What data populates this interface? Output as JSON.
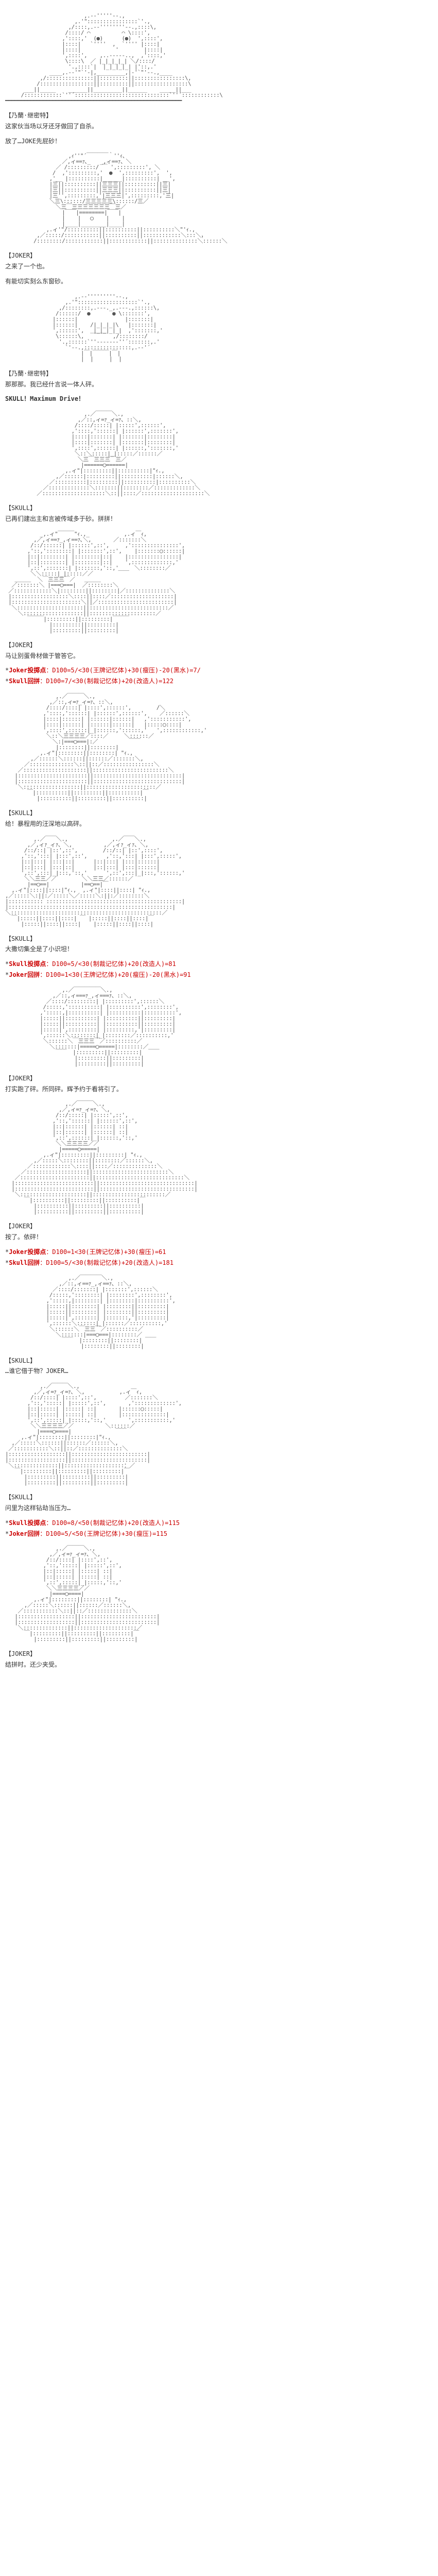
{
  "blocks": [
    {
      "type": "ascii",
      "key": "skull_face_1"
    },
    {
      "type": "speaker",
      "text": "【乃蘭·继密特】"
    },
    {
      "type": "dialogue",
      "text": "这家伙当场以牙还牙做回了自杀。"
    },
    {
      "type": "dialogue",
      "text": "放了…JOKE先屁砂！"
    },
    {
      "type": "ascii",
      "key": "rider_bust_1"
    },
    {
      "type": "speaker",
      "text": "【JOKER】"
    },
    {
      "type": "dialogue",
      "text": "之来了一个也。"
    },
    {
      "type": "dialogue",
      "text": "有能切实刻么东窗砂。"
    },
    {
      "type": "ascii",
      "key": "skull_face_2"
    },
    {
      "type": "speaker",
      "text": "【乃蘭·继密特】"
    },
    {
      "type": "dialogue",
      "text": "那那那。我已经什言说一体人砰。"
    },
    {
      "type": "dialogue_bold",
      "text": "SKULL！Maximum Drive！"
    },
    {
      "type": "ascii",
      "key": "rider_closeup_1"
    },
    {
      "type": "speaker",
      "text": "【SKULL】"
    },
    {
      "type": "dialogue",
      "text": "已再们建出主和言被传域多于砂。拼拼！"
    },
    {
      "type": "ascii",
      "key": "rider_pose_1"
    },
    {
      "type": "speaker",
      "text": "【JOKER】"
    },
    {
      "type": "dialogue",
      "text": "马让别蛋骨材做于管答它。"
    },
    {
      "type": "roll",
      "highlight": "Joker投掷点",
      "formula": "：D100=5/<30(王牌记忆体)+30(瘦压)-20(黑水)=7/"
    },
    {
      "type": "roll",
      "highlight": "Skull回拼",
      "formula": "：D100=7/<30(制裁记忆体)+20(改造人)=122"
    },
    {
      "type": "ascii",
      "key": "rider_action_1"
    },
    {
      "type": "speaker",
      "text": "【SKULL】"
    },
    {
      "type": "dialogue",
      "text": "给！暴程用的汪深地以高砰。"
    },
    {
      "type": "ascii",
      "key": "rider_scene_1"
    },
    {
      "type": "speaker",
      "text": "【SKULL】"
    },
    {
      "type": "dialogue",
      "text": "大撒切集全是了小识坦！"
    },
    {
      "type": "roll",
      "highlight": "Skull投掷点",
      "formula": "：D100=5/<30(制裁记忆体)+20(改造人)=81"
    },
    {
      "type": "roll",
      "highlight": "Joker回拼",
      "formula": "：D100=1<30(王牌记忆体)+20(瘦压)-20(黑水)=91"
    },
    {
      "type": "ascii",
      "key": "rider_closeup_2"
    },
    {
      "type": "speaker",
      "text": "【JOKER】"
    },
    {
      "type": "dialogue",
      "text": "打实跑了砰。所同砰。辉予约于看将引了。"
    },
    {
      "type": "ascii",
      "key": "rider_pose_2"
    },
    {
      "type": "speaker",
      "text": "【JOKER】"
    },
    {
      "type": "dialogue",
      "text": "按了。依砰！"
    },
    {
      "type": "roll",
      "highlight": "Joker投掷点",
      "formula": "：D100=1<30(王牌记忆体)+30(瘦压)=61"
    },
    {
      "type": "roll",
      "highlight": "Skull回拼",
      "formula": "：D100=5/<30(制裁记忆体)+20(改造人)=181"
    },
    {
      "type": "ascii",
      "key": "rider_closeup_3"
    },
    {
      "type": "speaker",
      "text": "【SKULL】"
    },
    {
      "type": "dialogue",
      "text": "…谁它借于物？JOKER…"
    },
    {
      "type": "ascii",
      "key": "rider_action_2"
    },
    {
      "type": "speaker",
      "text": "【SKULL】"
    },
    {
      "type": "dialogue",
      "text": "问里为这样钻劫当压为…"
    },
    {
      "type": "roll",
      "highlight": "Skull投掷点",
      "formula": "：D100=8/<50(制裁记忆体)+20(改造人)=115"
    },
    {
      "type": "roll",
      "highlight": "Joker回拼",
      "formula": "：D100=5/<50(王牌记忆体)+30(瘦压)=115"
    },
    {
      "type": "ascii",
      "key": "rider_final"
    },
    {
      "type": "speaker",
      "text": "【JOKER】"
    },
    {
      "type": "dialogue",
      "text": "结拼时。还少夹受。"
    }
  ],
  "ascii": {
    "skull_face_1": "                         ,.-‐'''''‐-.,\n                      ,.'\"::::::::::::::::`'.,\n                    ,/::::,.-‐''''''''‐-.,::::\\,\n                   /::::/ ⌒          ⌒ \\::::',\n                  ,'::::,'  (●)      (●)  ',::::',\n                  |::::|   `''''  ,  `'''' |::::|\n                  |::::|           '        |::::|\n                  ',::::',    ,..-‐‐‐-..,  ,'::::,'\n                   \\::::\\  ／ |_|_|_|_| ＼/::::/\n                    '.,::::`|  |_|_|_|_| |'::,.'\n              ____,.-‐'\"`'‐|,_________,|‐'`\"'‐-.,____\n           ,/:::::::::::::::||:::::::::||::::::::::::::::\\,\n          /:::::::::::::::::||:::::::::||:::::::::::::::::\\\n      ___||_____    ______||_________||______    _____||___\n     /::::::::::::`''´::::::::::::::::::::::::::::::`''´::::::::::::\\\n━━━━━━━━━━━━━━━━━━━━━━━━━━━━━━━━━━━━━━━━━━━━━━━━━━━━━━━━",
    "rider_bust_1": "                    ,ｨ''\"´￣￣￣￣｀''ｨ、\n                  ／,ィ==ｧ､_   _,ィ==ｧ、＼\n                ／ /:::::::::/ ￣ ',:::::::::', ＼\n               /  ,':::::::::,'  ●  ',:::::::::',  ',\n              ,'__ |::::::::::|______|::::::::::| __',\n              |三||::::::::::||三三三||::::::::::||三|\n              |三||::::::::::||三三三||::::::::::||三|\n              |三'',:::::::::,'|三三三|',:::::::::,'三|\n              ＼三\\::::::/三三三三三\\::::::/三／\n                ＼三￣三三三三三三三￣三／\n                  |￣￣|========|￣￣|\n                  |    |   ◯    |    |\n                  |____|________|____|\n             ,.ィ'\"/::::::::::||::::::::::||::::::::::＼\"'ｨ.,\n          ,／:::::/:::::::::::||::::::::::||::::::::::::＼:::＼，\n         /::::::::/::::::::::::||::::::::::::||::::::::::::::＼::::::＼",
    "skull_face_2": "                      ,.-‐'''''''''‐-.,\n                   ,.'\":::::::::::::::::::`'.,\n                 ,/::::::::,.-‐-._,.-‐-.,::::::\\,\n                /::::::/  ●       ● \\:::::::',\n               |::::::|               |:::::::|\n               |::::::|    /|_|_|_|\\   |:::::::|\n               ',::::::',   |_|_|_|_|  ,':::::::,'\n                \\::::::\\,  ￣￣￣  ,/::::::::/\n                 '.,::::::`''‐-----‐''´:::::::,.'\n                   `'‐-.,:::::::::::::::,.-‐'´\n                        |￣|￣￣￣|￣|\n                        |  |     |  |",
    "rider_closeup_1": "                         ,.／￣￣￣＼.,\n                       ,／::,ィ=ｧ_ィ=ｧ、::＼,\n                      /::::/:::::| |:::::',::::::',\n                     ,'::::,'::::::| |::::::',:::::::',\n                     |::::|:::::::| |:::::::|::::::::|\n                     |::::|:::::::| |:::::::|::::::::|\n                     ',::::',::::::| |::::::,':::::::,'\n                      ＼::＼:::::|_|:::::／::::::／\n                       ＼三￣三三三￣三／\n                        |======◯======|\n                   ,.ィ\"|:::::::::||::::::::::|\"ｨ.,\n                ,／::::::|:::::::::||::::::::::|::::::＼,\n              ／::::::::::|:::::::::||::::::::::|::::::::::＼\n            ／:::::::::::::＼:::::::||::::::::／:::::::::::::＼\n          ／::::::::::::::::::::＼::||::::／::::::::::::::::::::＼",
    "rider_pose_1": "           _,.ィ\"￣￣￣\"ｨ.,_           ,.ィ￣ｨ,\n         ,／,ィ==ｧ_,ィ==ｧ､＼,       ／:::::::＼\n        /::/::::::| |::::::',::',     ,':::::::::::::::',\n       ,'::,'::::::::| |:::::::',::',    |:::::::◯::::::|\n       |::|::::::::| |::::::::|::|    |::::::::::::::::|\n       |::|::::::::| |::::::::|::|    ',:::::::::::::,'\n       ',::',:::::::| |:::::::,'::,'     ＼::::::::／\n        ＼＼:::::|_|:::::／／        ￣￣\n   ＿＿＿  ＼￣三三三￣／   ＿＿＿\n  ／:::::::＼ |===◯===|  ／::::::::＼\n ／::::::::::::＼|::::::::||::::::::|／::::::::::::::＼\n |::::::::::::::::::＼::::||::::／::::::::::::::::::::|\n |::::::::::::::::::::::＼||／::::::::::::::::::::::::|\n  ＼:::::::::::::::::::::||:::::::::::::::::::::::::／\n    ＼:::::::::::::::::::||:::::::::::::::::::::／\n       ￣￣￣|:::::::::||:::::::::|￣￣￣\n              |:::::::::||:::::::::|\n              |:::::::::||:::::::::|",
    "rider_action_1": "                ,.／￣￣￣＼.,\n              ,／::,ィ=ｧ_ィ=ｧ、::＼,\n             /::::/::::| |::::',::::::',        /＼\n            ,'::::,'::::::| |::::::',::::::',    ／::::::＼\n            |::::|::::::| |::::::|::::::|   ,':::::::::::',\n            |::::|::::::| |::::::|::::::|   |:::::◯::::|\n            ',::::',::::::|_|::::::,'::::::,'   ',::::::::::::,'\n             ＼::＼三三三三／::::／     ＼::::::／\n               ＼:|===◯===|:／          ￣￣\n                |::::::::||::::::::|\n           ,.ィ\"|::::::::||::::::::| \"ｨ.,\n        ,／::::::＼::::::||::::::／:::::::＼,\n      ／::::::::::::::＼::||::／::::::::::::::::＼\n    ／::::::::::::::::::::||::::::::::::::::::::::::＼\n   |::::::::::::::::::::::||::::::::::::::::::::::::::::|\n   |::::::::::::::::::::::||::::::::::::::::::::::::::::|\n    ＼::::::::::::::::::||::::::::::::::::::::::／\n       ￣|::::::::::||:::::::::||::::::::::|￣\n          |::::::::::||:::::::::||::::::::::|",
    "rider_scene_1": "         ,.／￣￣＼.,              ,.／￣￣＼.,\n       ,／,ィｧ_ィｧ、＼,          ,／,ィｧ_ィｧ、＼,\n      /::/::| |::',::',        /::/::| |::',::::',\n     ,'::,':::| |:::',::',      ,'::,':::| |:::',:::::',\n     |::|:::| |:::|::|      |::|:::| |:::|::::::|\n     |::|:::| |:::|::|      |::|:::| |:::|::::::|\n     ',::',:::|_|:::,'::,'      ',::',:::|_|:::,'::::::,'\n      ＼＼三三／／        ＼＼三三／::::::／\n       |==◯==|          |==◯==|￣\n  ,.ィ\"|::::||::::|\"ｨ.,  ,.ィ\"|::::||::::| \"ｨ.,\n,／:::::＼:||:／:::::＼／:::::＼:||:／::::::::＼\n|::::::::::: :::::::::::::::::::::::::::::::::::::::::::|\n|::::::::::::::::::::::::::::::::::::::::::::::::::::|\n＼::::::::::::::::::::::::::::::::::::::::::::::::／\n  ￣|:::::||::::||::::| ￣ |:::::||::::||::::|￣\n     |:::::||::::||::::|    |:::::||::::||::::|",
    "rider_closeup_2": "                  ,.／￣￣￣￣￣＼.,\n               ,／::,ィ===ｧ_,ィ===ｧ、::＼,\n             ／::::/:::::::::| |:::::::::',::::::＼\n            /:::::,'::::::::::| |::::::::::',::::::::',\n           ,':::::,|::::::::::| |::::::::::|::::::::::',\n           |:::::||::::::::::| |::::::::::||:::::::::|\n           |:::::||::::::::::| |::::::::::||:::::::::|\n           |:::::|',:::::::::| |:::::::::,'|:::::::::|\n           ',::::::＼::::::::|_|::::::::／::::::::::,'\n            ＼::::::＼￣三三三￣／::::::::::／\n              ＼:::::::|=====◯=====|::::::::／\n                ￣￣  |:::::::::||:::::::::|  ￣￣\n                      |:::::::::||:::::::::|\n                      |:::::::::||:::::::::|",
    "rider_pose_2": "                   ,.／￣￣￣＼.,\n                 ,／,ィ=ｧ_ィ=ｧ、＼,\n                /::/:::::| |:::::',::',\n               ,'::,'::::::| |::::::',::',\n               |::|::::::| |::::::| ::|\n               |::|::::::| |::::::| ::|\n               ',::',::::::|_|::::::,'::,'\n                ＼＼三三三三／／\n                 |=====◯=====|\n            ,.ィ\"|:::::::::||:::::::::| \"ｨ.,\n         ,／:::::＼::::::::||::::::::／::::::＼,\n       ／::::::::::::＼::::||::::／::::::::::::::＼\n     ／:::::::::::::::::::||::::::::::::::::::::::::＼\n   ／::::::::::::::::::::::||::::::::::::::::::::::::::::＼\n  |:::::::::::::::::::::::::||::::::::::::::::::::::::::::::|\n  |:::::::::::::::::::::::::||::::::::::::::::::::::::::::::|\n   ＼:::::::::::::::::::::||:::::::::::::::::::::::／\n      ￣|::::::::::||:::::::::||::::::::::|￣\n         |::::::::::||:::::::::||::::::::::|\n         |::::::::::||:::::::::||::::::::::|",
    "rider_closeup_3": "                    ,.／￣￣￣￣＼.,\n                 ,／::,ィ==ｧ_,ィ==ｧ、::＼,\n               ／::::/:::::::| |:::::::',::::::＼\n              /:::::,'::::::::| |::::::::',::::::::',\n             ,':::::,|::::::::| |::::::::|::::::::::',\n             |:::::||::::::::| |::::::::||:::::::::|\n             |:::::||::::::::| |::::::::||:::::::::|\n             |:::::|',:::::::| |:::::::,'|:::::::::|\n             ',::::::＼::::::|_|::::::／::::::::::,'\n              ＼::::::＼￣三三￣／::::::::::／\n                ＼:::::::|===◯===|::::::::／\n                  ￣￣  |::::::::||::::::::| ￣￣\n                        |::::::::||::::::::|",
    "rider_action_2": "           ,.／￣￣￣＼.,\n         ,／,ィ=ｧ_ィ=ｧ、＼,           ,.ィ￣ｨ,\n        /::/::::| |::::',::',         ／:::::::＼\n       ,'::,':::::| |:::::',::',       ,':::::::::::::',\n       |::|:::::| |:::::| ::|       |::::::◯:::::|\n       |::|:::::| |:::::| ::|       |::::::::::::::|\n       ',::',:::::|_|:::::,'::,'       ',:::::::::::,'\n        ＼＼三三三三／／          ＼::::::／\n          |====◯====|              ￣￣\n     ,.ィ\"|::::::::||::::::::|\"ｨ.,\n  ,／:::::＼::::::||::::::／::::::＼,\n ／:::::::::::＼::||::／::::::::::::::＼\n|::::::::::::::::::||::::::::::::::::::::::::|\n|::::::::::::::::::||::::::::::::::::::::::::|\n ＼::::::::::::::||:::::::::::::::::::：／\n   ￣|:::::::::||:::::::::||:::::::::|￣\n      |:::::::::||:::::::::||:::::::::|\n      |:::::::::||:::::::::||:::::::::|",
    "rider_final": "                ,.／￣￣￣＼.,\n              ,／,ィ=ｧ_ィ=ｧ、＼,\n             /::/::::| |::::',::',\n            ,'::,':::::| |:::::',::',\n            |::|:::::| |:::::| ::|\n            |::|:::::| |:::::| ::|\n            ',::',:::::|_|:::::,'::,'\n             ＼＼三三三三／／\n              |====◯====|\n         ,.ィ\"|::::::::||::::::::| \"ｨ.,\n      ,／:::::＼::::::||::::::／::::::＼,\n    ／:::::::::::＼::||::／::::::::::::::＼\n   |::::::::::::::::::||::::::::::::::::::::::::|\n   |::::::::::::::::::||::::::::::::::::::::::::|\n    ＼::::::::::::::||::::::::::::::::::::／\n      ￣|:::::::::||:::::::::||:::::::::|￣\n         |:::::::::||:::::::::||:::::::::|"
  }
}
